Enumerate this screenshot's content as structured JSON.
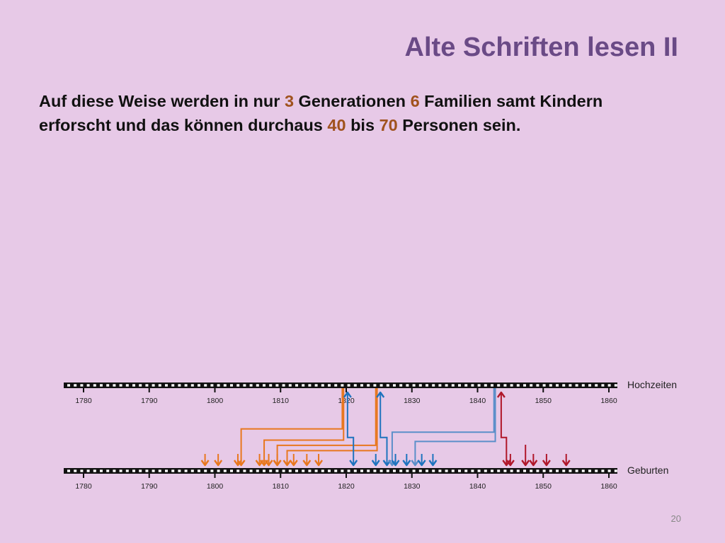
{
  "slide": {
    "title": "Alte Schriften lesen II",
    "page_number": "20",
    "body": {
      "t1": "Auf diese Weise werden in nur ",
      "n1": "3",
      "t2": " Generationen ",
      "n2": "6",
      "t3": " Familien samt Kindern erforscht und das können durchaus ",
      "n3": "40",
      "t4": " bis ",
      "n4": "70",
      "t5": " Personen sein."
    },
    "highlight_color": "#a0521d"
  },
  "timeline": {
    "years": [
      "1780",
      "1790",
      "1800",
      "1810",
      "1820",
      "1830",
      "1840",
      "1850",
      "1860"
    ],
    "year_values": [
      1780,
      1790,
      1800,
      1810,
      1820,
      1830,
      1840,
      1850,
      1860
    ],
    "rows": [
      {
        "label": "Hochzeiten",
        "kind": "marriages"
      },
      {
        "label": "Geburten",
        "kind": "births"
      }
    ],
    "colors": {
      "orange": "#e8771e",
      "blue": "#1e73be",
      "steelblue": "#5b8fc9",
      "red": "#b0172a"
    },
    "birth_arrows": [
      {
        "year": 1798.5,
        "color": "orange"
      },
      {
        "year": 1800.5,
        "color": "orange"
      },
      {
        "year": 1803.5,
        "color": "orange"
      },
      {
        "year": 1806.8,
        "color": "orange"
      },
      {
        "year": 1808.2,
        "color": "orange"
      },
      {
        "year": 1809.5,
        "color": "orange"
      },
      {
        "year": 1812,
        "color": "orange"
      },
      {
        "year": 1814,
        "color": "orange"
      },
      {
        "year": 1815.8,
        "color": "orange"
      },
      {
        "year": 1824.5,
        "color": "blue"
      },
      {
        "year": 1827.5,
        "color": "blue"
      },
      {
        "year": 1829.2,
        "color": "blue"
      },
      {
        "year": 1831.5,
        "color": "blue"
      },
      {
        "year": 1833.2,
        "color": "blue"
      },
      {
        "year": 1845,
        "color": "red"
      },
      {
        "year": 1848.5,
        "color": "red"
      },
      {
        "year": 1850.5,
        "color": "red"
      },
      {
        "year": 1853.5,
        "color": "red"
      }
    ],
    "connectors": [
      {
        "color": "orange",
        "marriage_year": 1819.4,
        "birth_year": 1804,
        "drop": 0.62
      },
      {
        "color": "orange",
        "marriage_year": 1819.6,
        "birth_year": 1807.5,
        "drop": 0.79
      },
      {
        "color": "orange",
        "marriage_year": 1824.5,
        "birth_year": 1809.5,
        "drop": 0.87
      },
      {
        "color": "orange",
        "marriage_year": 1824.7,
        "birth_year": 1811,
        "drop": 0.95
      },
      {
        "color": "blue",
        "marriage_year": 1820.2,
        "birth_year": 1821.1,
        "drop": 0.75,
        "up": true
      },
      {
        "color": "blue",
        "marriage_year": 1825.2,
        "birth_year": 1826.2,
        "drop": 0.75,
        "up": true
      },
      {
        "color": "steelblue",
        "marriage_year": 1842.5,
        "birth_year": 1827,
        "drop": 0.67
      },
      {
        "color": "steelblue",
        "marriage_year": 1842.7,
        "birth_year": 1830.5,
        "drop": 0.81
      },
      {
        "color": "red",
        "marriage_year": 1843.6,
        "birth_year": 1844.4,
        "drop": 0.75,
        "up": true
      },
      {
        "color": "red",
        "marriage_year": 1847.3,
        "birth_year": 1847.3,
        "drop": 0,
        "up": false,
        "short": true
      }
    ]
  }
}
